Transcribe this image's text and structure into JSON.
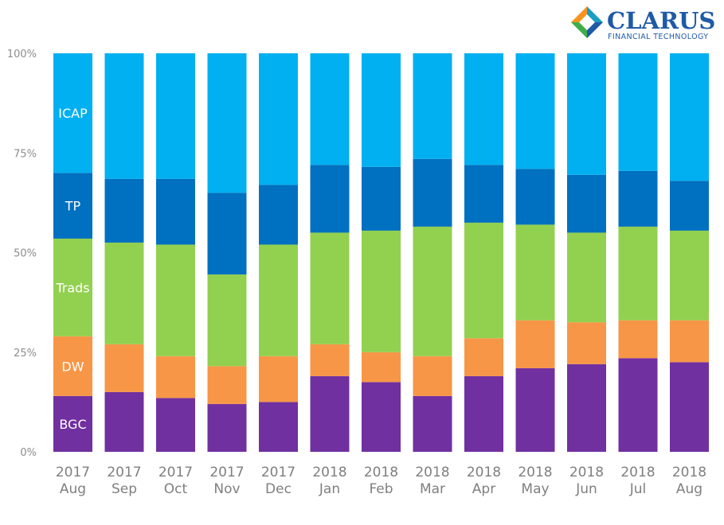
{
  "logo": {
    "name": "CLARUS",
    "tagline": "FINANCIAL TECHNOLOGY",
    "colors": {
      "orange": "#f7941d",
      "teal": "#1a9ec2",
      "navy": "#1f5aa6",
      "green": "#3fae49"
    }
  },
  "chart_data": {
    "type": "bar",
    "stacked": true,
    "percent": true,
    "title": "",
    "xlabel": "",
    "ylabel": "",
    "ylim": [
      0,
      100
    ],
    "y_ticks": [
      "0%",
      "25%",
      "50%",
      "75%",
      "100%"
    ],
    "categories": [
      [
        "2017",
        "Aug"
      ],
      [
        "2017",
        "Sep"
      ],
      [
        "2017",
        "Oct"
      ],
      [
        "2017",
        "Nov"
      ],
      [
        "2017",
        "Dec"
      ],
      [
        "2018",
        "Jan"
      ],
      [
        "2018",
        "Feb"
      ],
      [
        "2018",
        "Mar"
      ],
      [
        "2018",
        "Apr"
      ],
      [
        "2018",
        "May"
      ],
      [
        "2018",
        "Jun"
      ],
      [
        "2018",
        "Jul"
      ],
      [
        "2018",
        "Aug"
      ]
    ],
    "legend_position": "inline-left",
    "series": [
      {
        "name": "BGC",
        "color": "#7030a0",
        "values": [
          14,
          15,
          13.5,
          12,
          12.5,
          19,
          17.5,
          14,
          19,
          21,
          22,
          23.5,
          22.5
        ]
      },
      {
        "name": "DW",
        "color": "#f79646",
        "values": [
          15,
          12,
          10.5,
          9.5,
          11.5,
          8,
          7.5,
          10,
          9.5,
          12,
          10.5,
          9.5,
          10.5
        ]
      },
      {
        "name": "Trads",
        "color": "#92d050",
        "values": [
          24.5,
          25.5,
          28,
          23,
          28,
          28,
          30.5,
          32.5,
          29,
          24,
          22.5,
          23.5,
          22.5
        ]
      },
      {
        "name": "TP",
        "color": "#0070c0",
        "values": [
          16.5,
          16,
          16.5,
          20.5,
          15,
          17,
          16,
          17,
          14.5,
          14,
          14.5,
          14,
          12.5
        ]
      },
      {
        "name": "ICAP",
        "color": "#00b0f0",
        "values": [
          30,
          31.5,
          31.5,
          35,
          33,
          28,
          28.5,
          26.5,
          28,
          29,
          30.5,
          29.5,
          32
        ]
      }
    ]
  }
}
